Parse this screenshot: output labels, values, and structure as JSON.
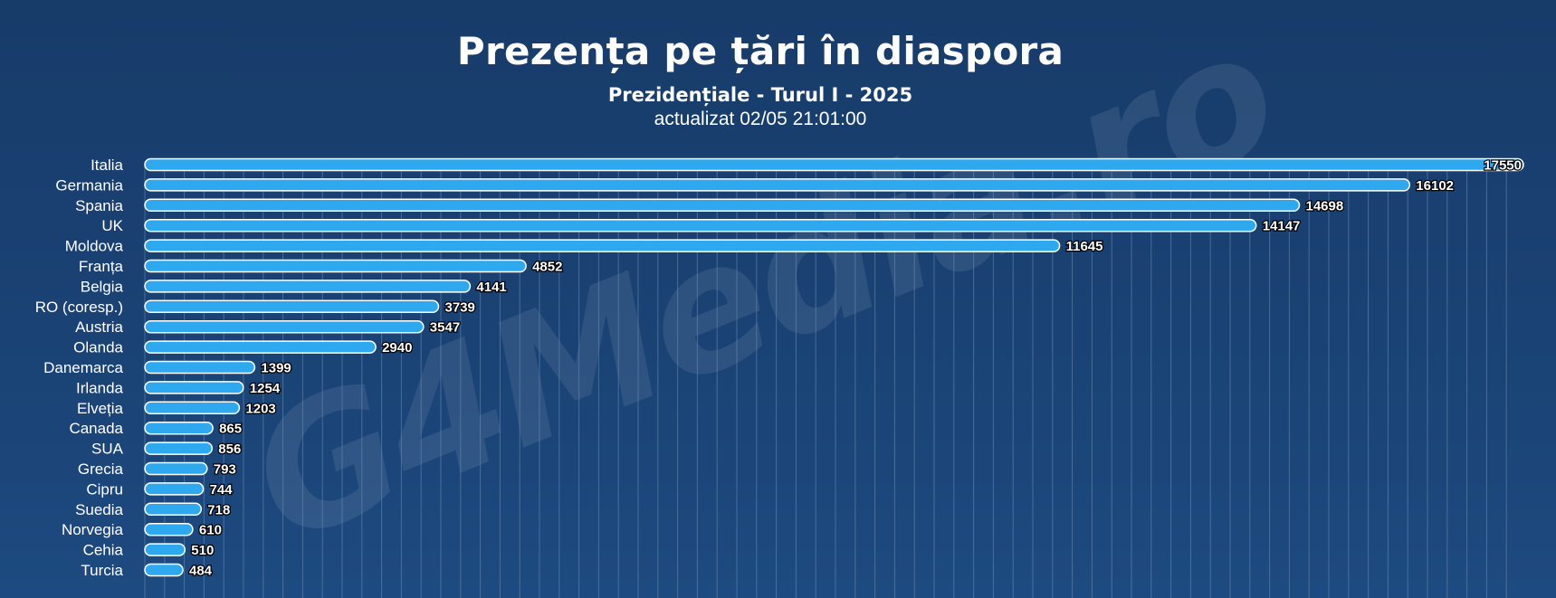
{
  "header": {
    "title": "Prezența pe țări în diaspora",
    "subtitle": "Prezidențiale - Turul I - 2025",
    "updated": "actualizat 02/05 21:01:00"
  },
  "watermark": "G4Media.ro",
  "colors": {
    "background": "#173c6a",
    "bar": "#2ea8ee",
    "bar_outline": "#ffffff",
    "grid": "#6d8fb8"
  },
  "chart_data": {
    "type": "bar",
    "orientation": "horizontal",
    "categories": [
      "Italia",
      "Germania",
      "Spania",
      "UK",
      "Moldova",
      "Franța",
      "Belgia",
      "RO (coresp.)",
      "Austria",
      "Olanda",
      "Danemarca",
      "Irlanda",
      "Elveția",
      "Canada",
      "SUA",
      "Grecia",
      "Cipru",
      "Suedia",
      "Norvegia",
      "Cehia",
      "Turcia"
    ],
    "values": [
      17550,
      16102,
      14698,
      14147,
      11645,
      4852,
      4141,
      3739,
      3547,
      2940,
      1399,
      1254,
      1203,
      865,
      856,
      793,
      744,
      718,
      610,
      510,
      484
    ],
    "xlim": [
      0,
      17550
    ],
    "grid": true
  }
}
